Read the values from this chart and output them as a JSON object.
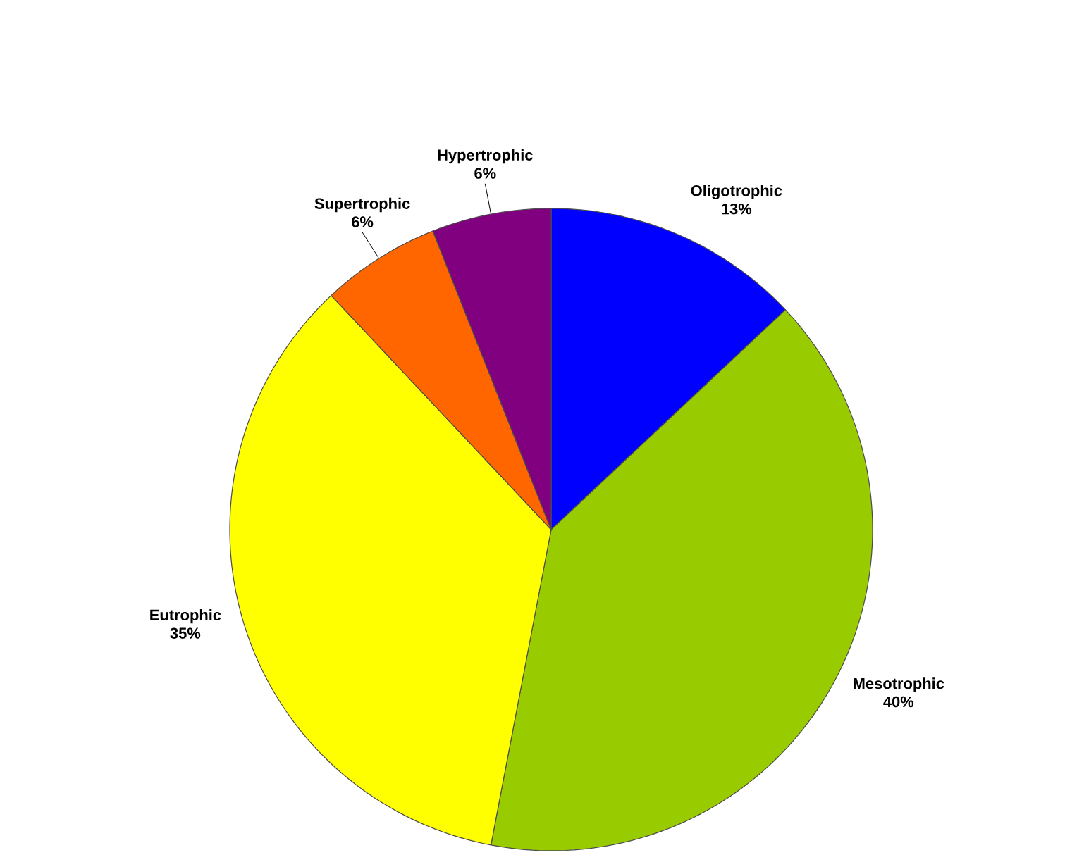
{
  "chart_data": {
    "type": "pie",
    "categories": [
      "Oligotrophic",
      "Mesotrophic",
      "Eutrophic",
      "Supertrophic",
      "Hypertrophic"
    ],
    "values": [
      13,
      40,
      35,
      6,
      6
    ],
    "value_labels": [
      "13%",
      "40%",
      "35%",
      "6%",
      "6%"
    ],
    "colors": [
      "#0000ff",
      "#99cc00",
      "#ffff00",
      "#ff6600",
      "#800080"
    ]
  }
}
